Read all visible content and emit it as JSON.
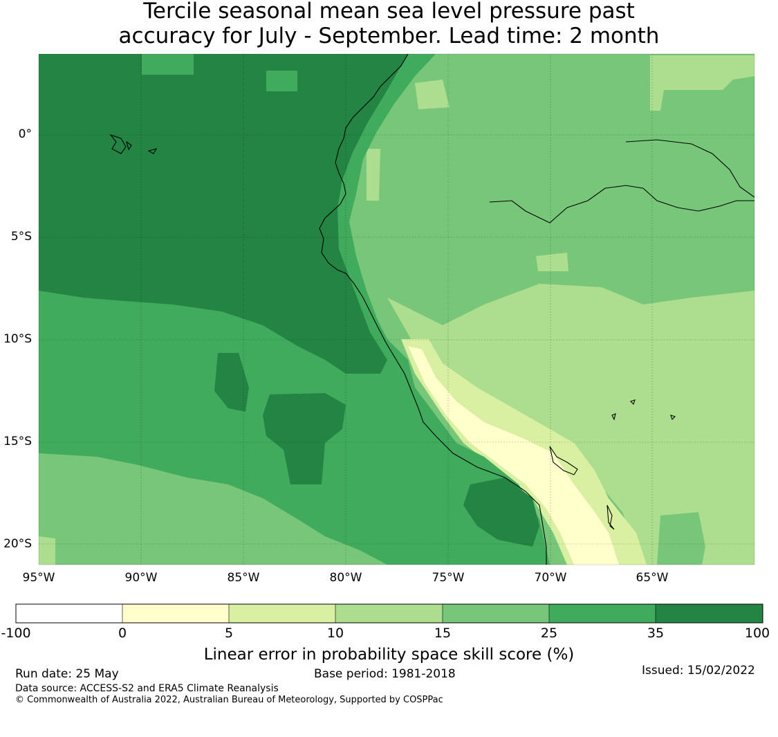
{
  "title_line1": "Tercile seasonal mean sea level pressure past",
  "title_line2": "accuracy for July - September. Lead time: 2 month",
  "map": {
    "lon_range": [
      -95,
      -60
    ],
    "lat_range": [
      -21,
      4
    ],
    "lat_ticks": [
      "0°",
      "5°S",
      "10°S",
      "15°S",
      "20°S"
    ],
    "lat_values": [
      0,
      -5,
      -10,
      -15,
      -20
    ],
    "lon_ticks": [
      "95°W",
      "90°W",
      "85°W",
      "80°W",
      "75°W",
      "70°W",
      "65°W"
    ],
    "lon_values": [
      -95,
      -90,
      -85,
      -80,
      -75,
      -70,
      -65
    ],
    "grid": true,
    "coastline_color": "#000000"
  },
  "colorbar": {
    "tick_labels": [
      "-100",
      "0",
      "5",
      "10",
      "15",
      "25",
      "35",
      "100"
    ],
    "colors": [
      "#ffffff",
      "#ffffcc",
      "#d9f0a3",
      "#addd8e",
      "#78c679",
      "#41ab5d",
      "#238443"
    ],
    "label": "Linear error in probability space skill score (%)"
  },
  "footer": {
    "run_date": "Run date: 25 May",
    "base_period": "Base period: 1981-2018",
    "issued": "Issued: 15/02/2022",
    "data_source": "Data source: ACCESS-S2 and ERA5 Climate Reanalysis",
    "copyright": "© Commonwealth of Australia 2022, Australian Bureau of Meteorology, Supported by COSPPac"
  }
}
